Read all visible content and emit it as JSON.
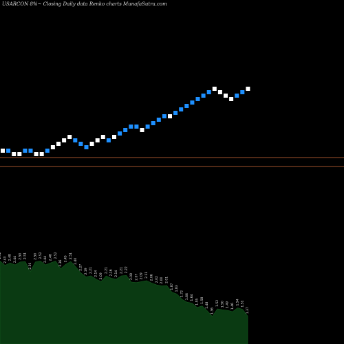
{
  "title": "USARCON  8%~  Closing Daily data  Renko  charts MunafaSutra.com",
  "colors": {
    "background": "#000000",
    "brick_up": "#ffffff",
    "brick_down": "#1e90ff",
    "support_line": "#a0522d",
    "volume_area": "#0a3a12",
    "volume_label": "#e6e6e6"
  },
  "chart_data": [
    {
      "type": "renko",
      "title": "USARCON  8%~  Closing Daily data  Renko  charts MunafaSutra.com",
      "brick_levels": [
        219,
        219,
        224,
        224,
        219,
        219,
        224,
        224,
        219,
        214,
        209,
        204,
        199,
        204,
        209,
        214,
        209,
        204,
        199,
        204,
        199,
        194,
        189,
        184,
        184,
        189,
        184,
        179,
        174,
        169,
        169,
        164,
        159,
        154,
        149,
        144,
        139,
        134,
        129,
        134,
        139,
        144,
        139,
        134,
        129
      ],
      "brick_directions": [
        "up",
        "down",
        "up",
        "up",
        "down",
        "down",
        "up",
        "up",
        "down",
        "up",
        "up",
        "up",
        "up",
        "down",
        "down",
        "down",
        "up",
        "up",
        "up",
        "down",
        "up",
        "down",
        "down",
        "down",
        "down",
        "up",
        "down",
        "down",
        "down",
        "down",
        "up",
        "down",
        "down",
        "down",
        "down",
        "down",
        "down",
        "down",
        "up",
        "up",
        "up",
        "up",
        "down",
        "down",
        "up"
      ],
      "reference_lines": [
        229,
        242
      ]
    },
    {
      "type": "area",
      "volume_labels": [
        "2.52",
        "2.43",
        "2.48",
        "2.44",
        "2.50",
        "2.51",
        "2.30",
        "2.50",
        "2.52",
        "2.44",
        "2.48",
        "2.52",
        "2.36",
        "2.45",
        "2.51",
        "2.40",
        "2.27",
        "2.19",
        "2.21",
        "2.14",
        "2.09",
        "2.21",
        "2.16",
        "2.14",
        "2.21",
        "2.22",
        "2.08",
        "2.07",
        "2.09",
        "2.11",
        "2.06",
        "2.02",
        "2.00",
        "2.01",
        "1.87",
        "1.83",
        "1.72",
        "1.66",
        "1.64",
        "1.55",
        "1.58",
        "1.48",
        "1.36",
        "1.52",
        "1.50",
        "1.49",
        "1.46",
        "1.54",
        "1.51",
        "1.37"
      ]
    }
  ]
}
